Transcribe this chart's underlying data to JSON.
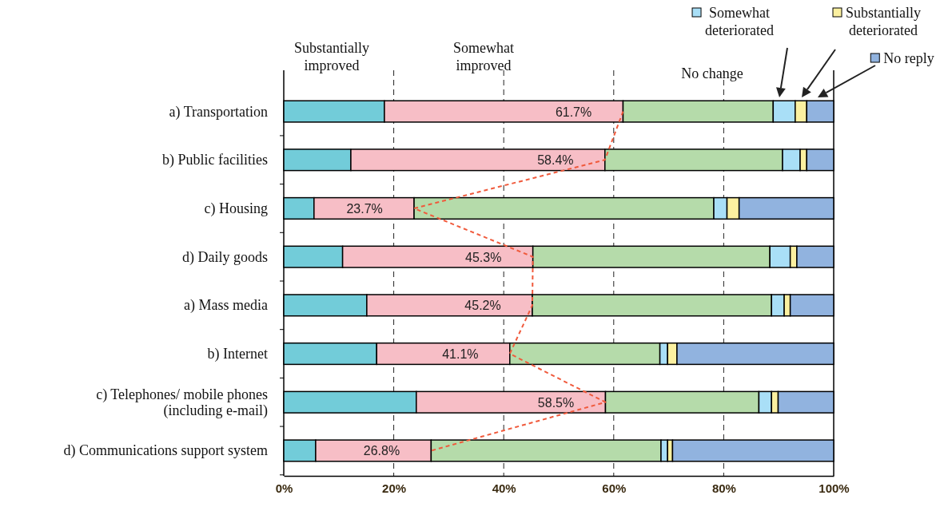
{
  "chart_data": {
    "type": "bar",
    "orientation": "horizontal",
    "stacked": true,
    "categories": [
      "a) Transportation",
      "b) Public facilities",
      "c) Housing",
      "d) Daily goods",
      "a) Mass media",
      "b) Internet",
      "c) Telephones/ mobile phones\n(including e-mail)",
      "d) Communications support system"
    ],
    "series": [
      {
        "name": "Substantially improved",
        "color": "#72ccd9",
        "values": [
          18.3,
          12.2,
          5.5,
          10.7,
          15.1,
          16.9,
          24.1,
          5.8
        ]
      },
      {
        "name": "Somewhat improved",
        "color": "#f7bec6",
        "values": [
          43.4,
          46.2,
          18.2,
          34.6,
          30.1,
          24.2,
          34.4,
          21.0
        ]
      },
      {
        "name": "No change",
        "color": "#b5dbaa",
        "values": [
          27.3,
          32.3,
          54.5,
          43.1,
          43.5,
          27.3,
          27.9,
          41.8
        ]
      },
      {
        "name": "Somewhat deteriorated",
        "color": "#a9dff7",
        "values": [
          4.0,
          3.2,
          2.4,
          3.7,
          2.3,
          1.4,
          2.3,
          1.2
        ]
      },
      {
        "name": "Substantially deteriorated",
        "color": "#fbf0a0",
        "values": [
          2.1,
          1.2,
          2.2,
          1.2,
          1.1,
          1.7,
          1.2,
          0.9
        ]
      },
      {
        "name": "No reply",
        "color": "#91b3df",
        "values": [
          4.9,
          4.9,
          17.2,
          6.7,
          7.9,
          28.5,
          10.1,
          29.3
        ]
      },
      {
        "type": "line",
        "color": "#f05a3c",
        "line_style": "dashed",
        "values": [
          61.7,
          58.4,
          23.7,
          45.3,
          45.2,
          41.1,
          58.5,
          26.8
        ],
        "value_labels": [
          "61.7%",
          "58.4%",
          "23.7%",
          "45.3%",
          "45.2%",
          "41.1%",
          "58.5%",
          "26.8%"
        ]
      }
    ],
    "xlim": [
      0,
      100
    ],
    "xticks": [
      {
        "value": 0,
        "label": "0%"
      },
      {
        "value": 20,
        "label": "20%"
      },
      {
        "value": 40,
        "label": "40%"
      },
      {
        "value": 60,
        "label": "60%"
      },
      {
        "value": 80,
        "label": "80%"
      },
      {
        "value": 100,
        "label": "100%"
      }
    ],
    "grid": "x",
    "legend": "top"
  }
}
